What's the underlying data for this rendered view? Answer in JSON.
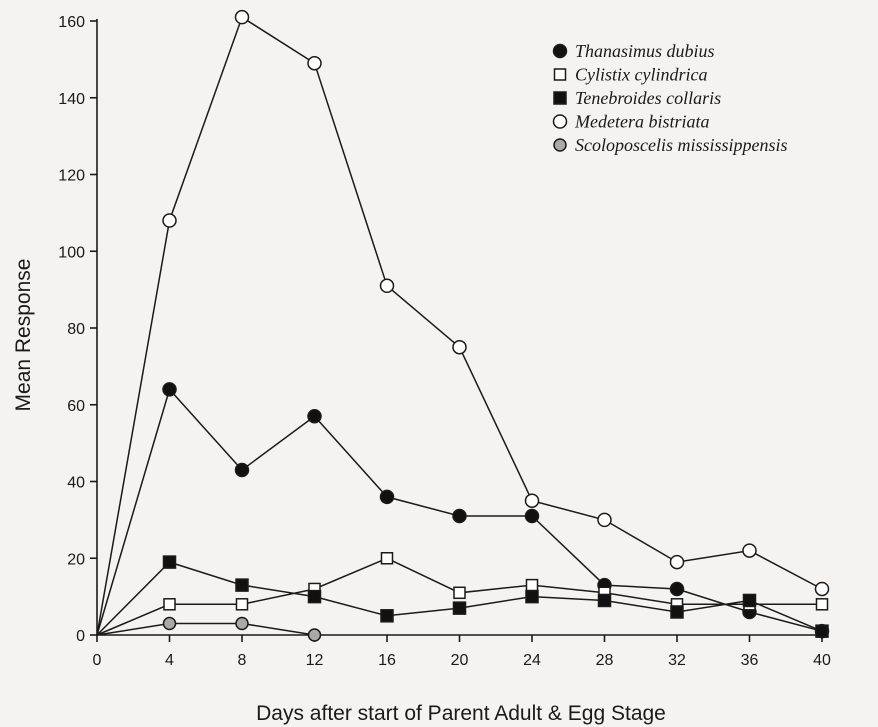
{
  "chart_data": {
    "type": "line",
    "xlabel": "Days after start of Parent Adult & Egg Stage",
    "ylabel": "Mean Response",
    "xlim": [
      0,
      40
    ],
    "ylim": [
      0,
      160
    ],
    "xticks": [
      "0",
      "4",
      "8",
      "12",
      "16",
      "20",
      "24",
      "28",
      "32",
      "36",
      "40"
    ],
    "yticks": [
      "0",
      "20",
      "40",
      "60",
      "80",
      "100",
      "120",
      "140",
      "160"
    ],
    "grid": false,
    "legend_position": "top-right",
    "series": [
      {
        "name": "Thanasimus dubius",
        "marker": "filled-circle",
        "x": [
          0,
          4,
          8,
          12,
          16,
          20,
          24,
          28,
          32,
          36,
          40
        ],
        "y": [
          0,
          64,
          43,
          57,
          36,
          31,
          31,
          13,
          12,
          6,
          1
        ]
      },
      {
        "name": "Cylistix cylindrica",
        "marker": "open-square",
        "x": [
          0,
          4,
          8,
          12,
          16,
          20,
          24,
          28,
          32,
          36,
          40
        ],
        "y": [
          0,
          8,
          8,
          12,
          20,
          11,
          13,
          11,
          8,
          8,
          8
        ]
      },
      {
        "name": "Tenebroides collaris",
        "marker": "filled-square",
        "x": [
          0,
          4,
          8,
          12,
          16,
          20,
          24,
          28,
          32,
          36,
          40
        ],
        "y": [
          0,
          19,
          13,
          10,
          5,
          7,
          10,
          9,
          6,
          9,
          1
        ]
      },
      {
        "name": "Medetera bistriata",
        "marker": "open-circle",
        "x": [
          0,
          4,
          8,
          12,
          16,
          20,
          24,
          28,
          32,
          36,
          40
        ],
        "y": [
          0,
          108,
          161,
          149,
          91,
          75,
          35,
          30,
          19,
          22,
          12
        ]
      },
      {
        "name": "Scoloposcelis mississippensis",
        "marker": "gray-circle",
        "x": [
          0,
          4,
          8,
          12
        ],
        "y": [
          0,
          3,
          3,
          0
        ]
      }
    ]
  }
}
